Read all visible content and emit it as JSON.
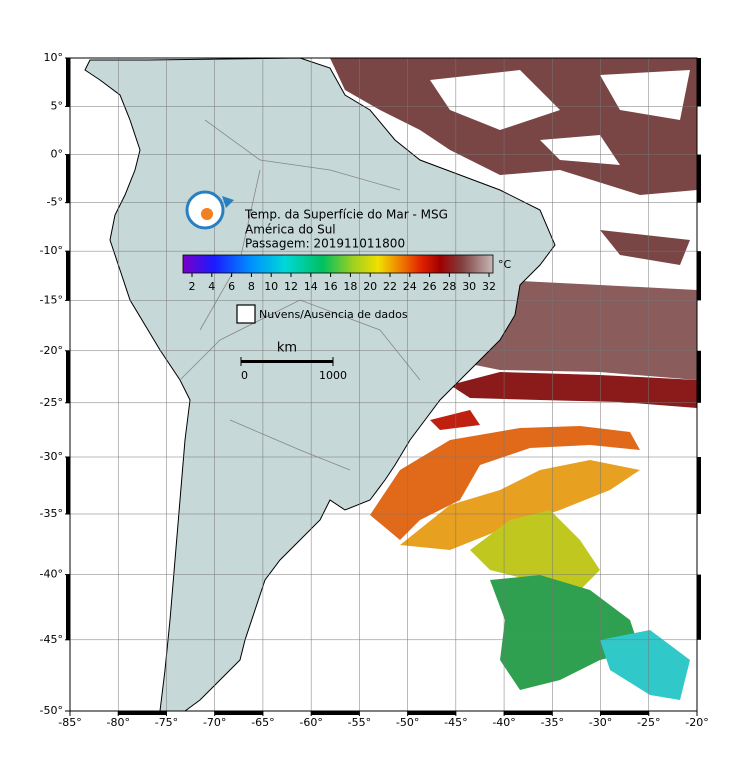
{
  "map": {
    "lon_ticks": [
      {
        "value": -85,
        "label": "-85°"
      },
      {
        "value": -80,
        "label": "-80°"
      },
      {
        "value": -75,
        "label": "-75°"
      },
      {
        "value": -70,
        "label": "-70°"
      },
      {
        "value": -65,
        "label": "-65°"
      },
      {
        "value": -60,
        "label": "-60°"
      },
      {
        "value": -55,
        "label": "-55°"
      },
      {
        "value": -50,
        "label": "-50°"
      },
      {
        "value": -45,
        "label": "-45°"
      },
      {
        "value": -40,
        "label": "-40°"
      },
      {
        "value": -35,
        "label": "-35°"
      },
      {
        "value": -30,
        "label": "-30°"
      },
      {
        "value": -25,
        "label": "-25°"
      },
      {
        "value": -20,
        "label": "-20°"
      }
    ],
    "lat_ticks": [
      {
        "value": 10,
        "label": "10°"
      },
      {
        "value": 5,
        "label": "5°"
      },
      {
        "value": 0,
        "label": "0°"
      },
      {
        "value": -5,
        "label": "-5°"
      },
      {
        "value": -10,
        "label": "-10°"
      },
      {
        "value": -15,
        "label": "-15°"
      },
      {
        "value": -20,
        "label": "-20°"
      },
      {
        "value": -25,
        "label": "-25°"
      },
      {
        "value": -30,
        "label": "-30°"
      },
      {
        "value": -35,
        "label": "-35°"
      },
      {
        "value": -40,
        "label": "-40°"
      },
      {
        "value": -45,
        "label": "-45°"
      },
      {
        "value": -50,
        "label": "-50°"
      }
    ]
  },
  "title": {
    "line1": "Temp. da Superfície do Mar - MSG",
    "line2": "América do Sul",
    "line3": "Passagem: 201911011800"
  },
  "colorbar": {
    "ticks": [
      2,
      4,
      6,
      8,
      10,
      12,
      14,
      16,
      18,
      20,
      22,
      24,
      26,
      28,
      30,
      32
    ],
    "unit": "°C"
  },
  "legend": {
    "label": "Nuvens/Ausencia de dados"
  },
  "scale_bar": {
    "unit": "km",
    "ticks": [
      0,
      1000
    ]
  }
}
